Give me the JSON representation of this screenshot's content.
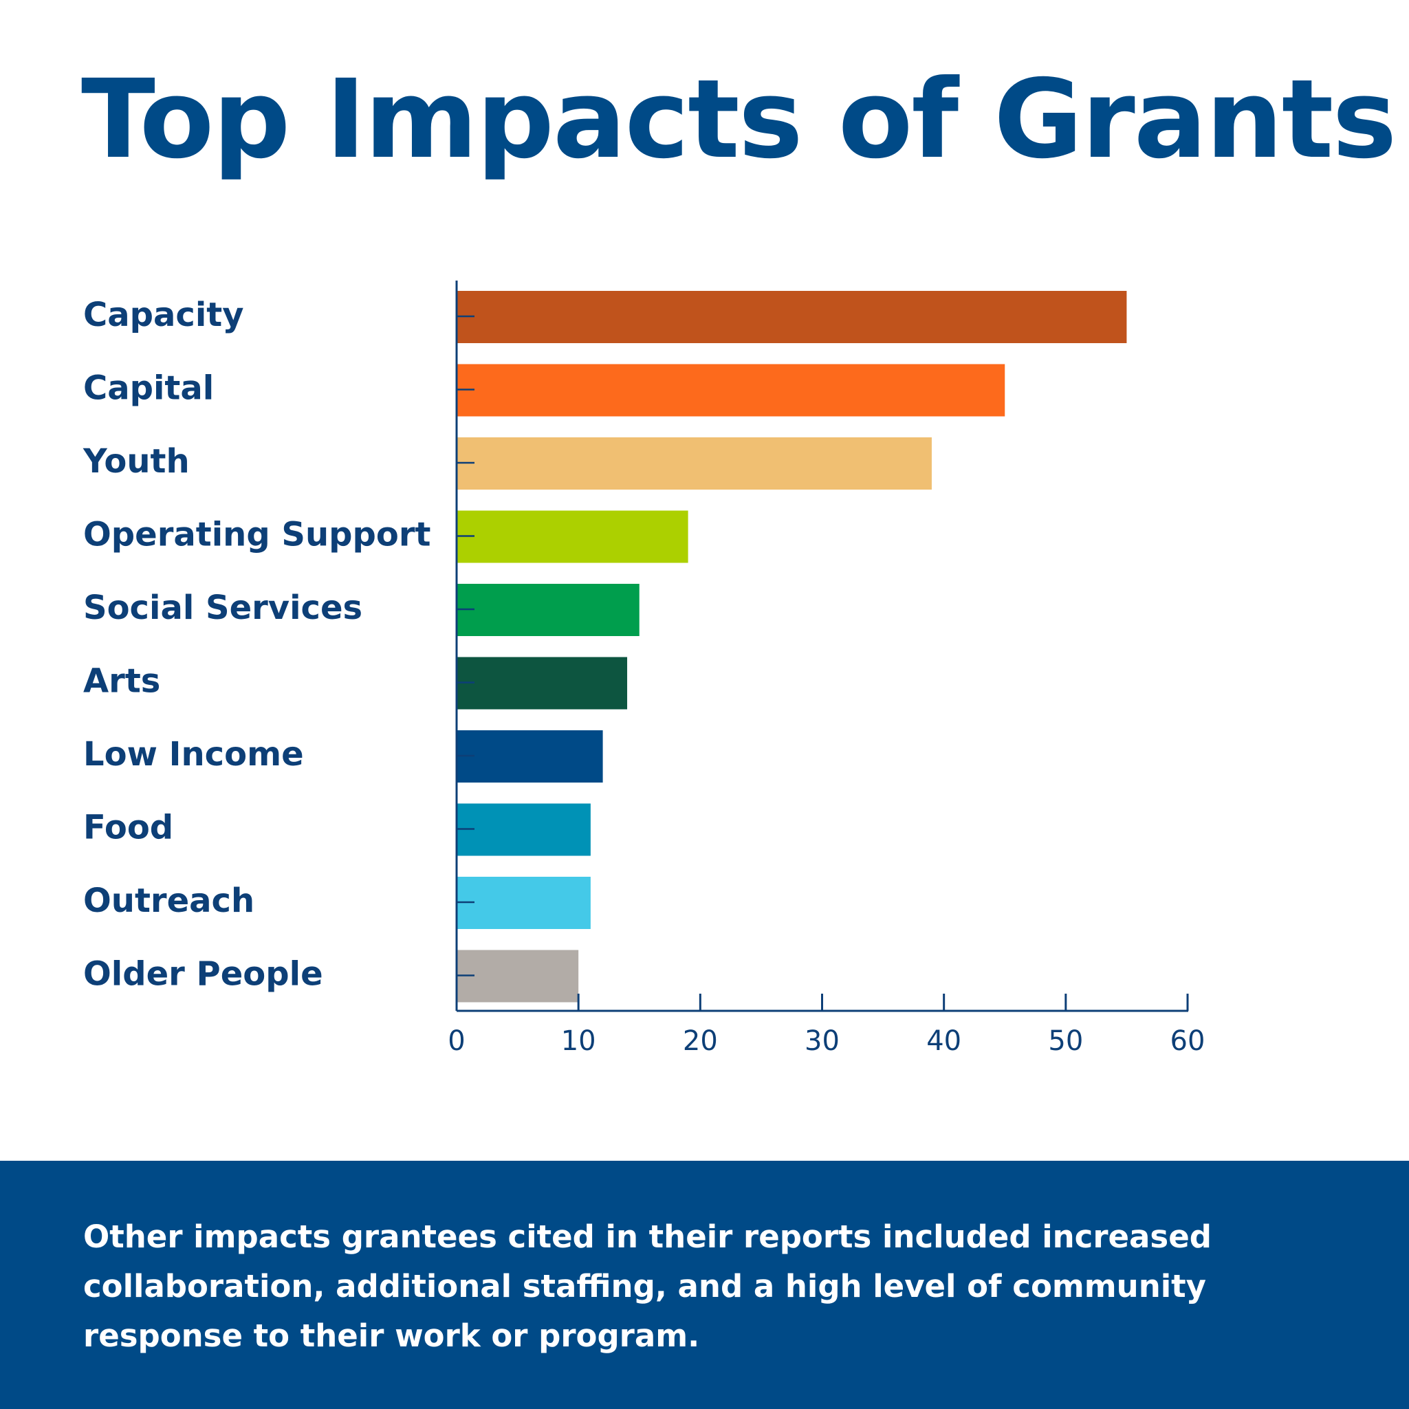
{
  "chart_data": {
    "type": "bar",
    "orientation": "horizontal",
    "title": "Top Impacts of Grants",
    "categories": [
      "Capacity",
      "Capital",
      "Youth",
      "Operating Support",
      "Social Services",
      "Arts",
      "Low Income",
      "Food",
      "Outreach",
      "Older People"
    ],
    "values": [
      55,
      45,
      39,
      19,
      15,
      14,
      12,
      11,
      11,
      10
    ],
    "colors": [
      "#c0531c",
      "#fd6a1c",
      "#f0bf72",
      "#acd000",
      "#009e4d",
      "#0d5540",
      "#004a87",
      "#0092b6",
      "#44c9e8",
      "#b2aca7"
    ],
    "xlim": [
      0,
      60
    ],
    "xticks": [
      "0",
      "10",
      "20",
      "30",
      "40",
      "50",
      "60"
    ],
    "xlabel": "",
    "ylabel": "",
    "grid": false,
    "legend": "none"
  },
  "footer": {
    "lines": [
      "Other impacts grantees cited in their reports included increased",
      "collaboration, additional staffing, and a high level of community",
      "response to their work or program."
    ]
  },
  "colors": {
    "title": "#004a87",
    "axis": "#0d3f77",
    "footer_background": "#004a87",
    "footer_text": "#ffffff"
  }
}
